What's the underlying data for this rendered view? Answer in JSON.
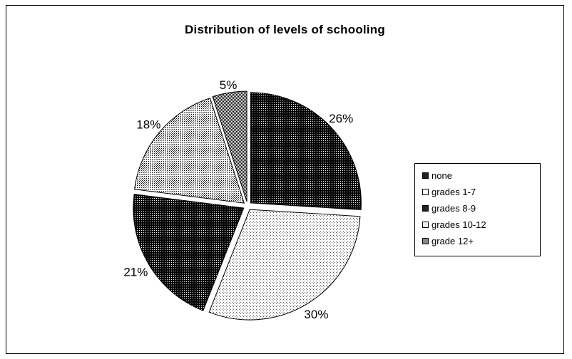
{
  "chart_data": {
    "type": "pie",
    "title": "Distribution of levels of schooling",
    "categories": [
      "none",
      "grades 1-7",
      "grades 8-9",
      "grades 10-12",
      "grade 12+"
    ],
    "values": [
      26,
      30,
      21,
      18,
      5
    ],
    "data_labels": [
      "26%",
      "30%",
      "21%",
      "18%",
      "5%"
    ],
    "legend": {
      "position": "right",
      "entries": [
        "none",
        "grades 1-7",
        "grades 8-9",
        "grades 10-12",
        "grade 12+"
      ]
    },
    "exploded": true,
    "patterns": [
      "dense-dots-dark",
      "sparse-dots-light",
      "dense-dots-dark",
      "medium-dots-light",
      "dense-dots-medium"
    ]
  }
}
